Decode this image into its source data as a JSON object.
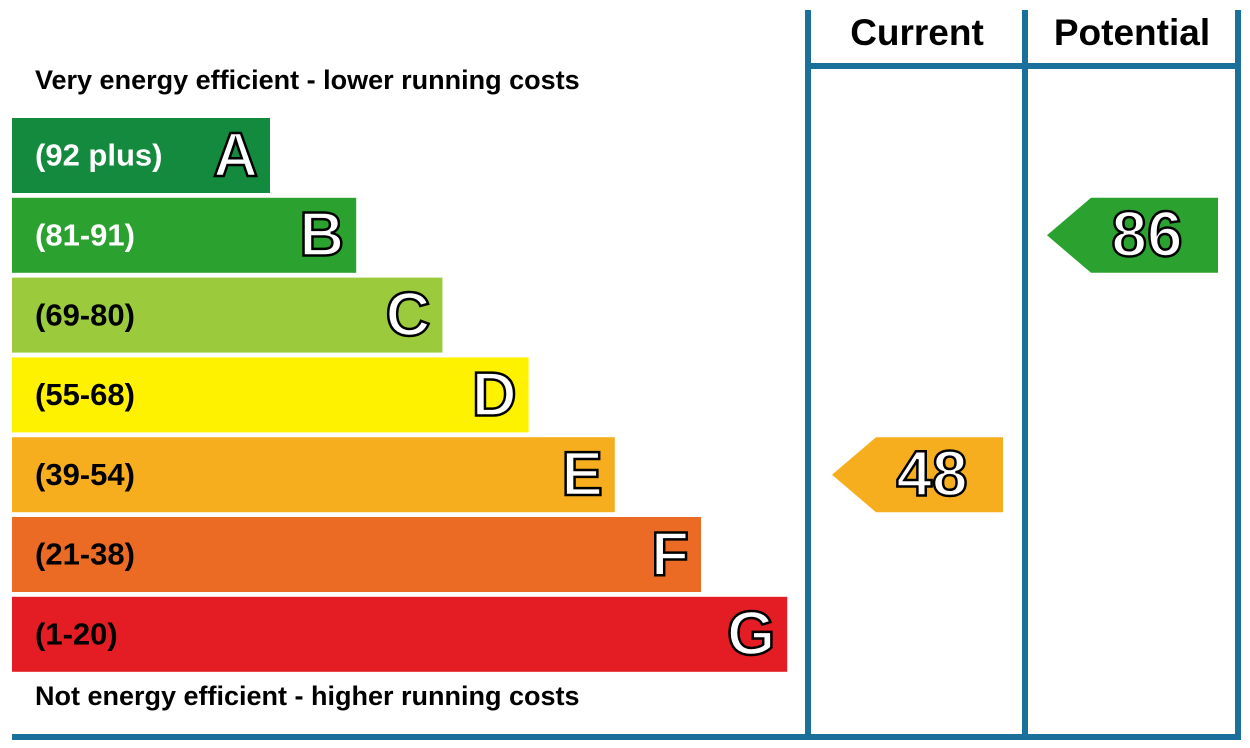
{
  "chart_data": {
    "type": "epc",
    "top_note": "Very energy efficient - lower running costs",
    "bottom_note": "Not energy efficient - higher running costs",
    "columns": [
      "Current",
      "Potential"
    ],
    "bands": [
      {
        "range": "(92 plus)",
        "letter": "A",
        "color": "#148a3e",
        "text_color": "#ffffff"
      },
      {
        "range": "(81-91)",
        "letter": "B",
        "color": "#2ba12f",
        "text_color": "#ffffff"
      },
      {
        "range": "(69-80)",
        "letter": "C",
        "color": "#9bcb3c",
        "text_color": "#000000"
      },
      {
        "range": "(55-68)",
        "letter": "D",
        "color": "#fef200",
        "text_color": "#000000"
      },
      {
        "range": "(39-54)",
        "letter": "E",
        "color": "#f7ae1e",
        "text_color": "#000000"
      },
      {
        "range": "(21-38)",
        "letter": "F",
        "color": "#ec6b24",
        "text_color": "#000000"
      },
      {
        "range": "(1-20)",
        "letter": "G",
        "color": "#e31d23",
        "text_color": "#000000"
      }
    ],
    "current": {
      "value": 48,
      "color": "#f7ae1e"
    },
    "potential": {
      "value": 86,
      "color": "#2ba12f"
    },
    "frame_color": "#1a6f9b"
  }
}
